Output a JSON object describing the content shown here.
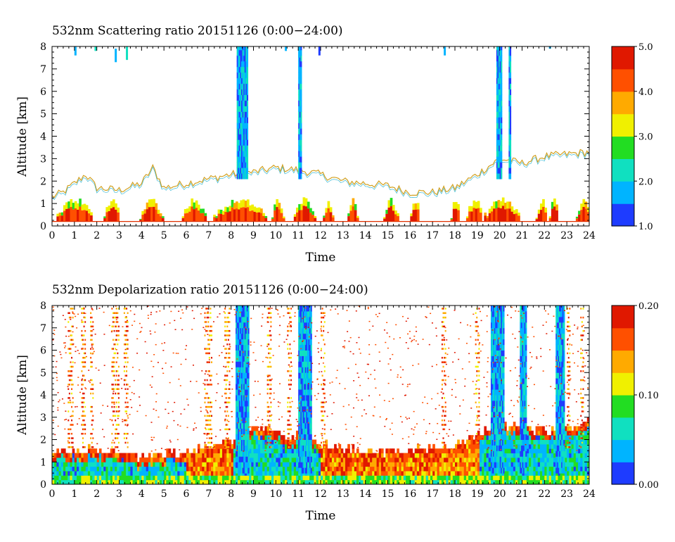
{
  "chart_data": [
    {
      "type": "heatmap",
      "title": "532nm Scattering ratio  20151126 (0:00−24:00)",
      "xlabel": "Time",
      "ylabel": "Altitude [km]",
      "xlim": [
        0,
        24
      ],
      "ylim": [
        0,
        8
      ],
      "x_ticks": [
        "0",
        "1",
        "2",
        "3",
        "4",
        "5",
        "6",
        "7",
        "8",
        "9",
        "10",
        "11",
        "12",
        "13",
        "14",
        "15",
        "16",
        "17",
        "18",
        "19",
        "20",
        "21",
        "22",
        "23",
        "24"
      ],
      "y_ticks": [
        "0",
        "1",
        "2",
        "3",
        "4",
        "5",
        "6",
        "7",
        "8"
      ],
      "colorbar": {
        "min": 1.0,
        "max": 5.0,
        "ticks": [
          "1.0",
          "2.0",
          "3.0",
          "4.0",
          "5.0"
        ],
        "colormap": "rainbow"
      },
      "colormap_colors": [
        "#1e3cff",
        "#00b4ff",
        "#10e0c0",
        "#22dd22",
        "#f0f000",
        "#ffaa00",
        "#ff5000",
        "#e01800"
      ],
      "features": {
        "cloud_top_km": [
          [
            0,
            1.3
          ],
          [
            0.5,
            1.5
          ],
          [
            1.5,
            2.3
          ],
          [
            2,
            1.7
          ],
          [
            3,
            1.6
          ],
          [
            4,
            1.9
          ],
          [
            4.5,
            2.6
          ],
          [
            5,
            1.7
          ],
          [
            6,
            1.9
          ],
          [
            7,
            2.1
          ],
          [
            8,
            2.3
          ],
          [
            9,
            2.4
          ],
          [
            10,
            2.6
          ],
          [
            11,
            2.5
          ],
          [
            12,
            2.3
          ],
          [
            13,
            2.0
          ],
          [
            14,
            1.9
          ],
          [
            15,
            1.8
          ],
          [
            16,
            1.5
          ],
          [
            17,
            1.5
          ],
          [
            18,
            1.7
          ],
          [
            19,
            2.3
          ],
          [
            20,
            3.0
          ],
          [
            21,
            2.8
          ],
          [
            22,
            3.1
          ],
          [
            23,
            3.2
          ],
          [
            24,
            3.3
          ]
        ],
        "low_layer_segments_h": [
          [
            0.2,
            1.8
          ],
          [
            2.3,
            3.0
          ],
          [
            3.9,
            4.9
          ],
          [
            5.8,
            6.8
          ],
          [
            7.2,
            9.5
          ],
          [
            9.8,
            10.3
          ],
          [
            10.8,
            11.7
          ],
          [
            12.1,
            12.5
          ],
          [
            13.2,
            13.6
          ],
          [
            14.8,
            15.4
          ],
          [
            16.0,
            16.4
          ],
          [
            17.8,
            18.2
          ],
          [
            18.5,
            19.2
          ],
          [
            19.3,
            20.9
          ],
          [
            21.6,
            22.1
          ],
          [
            22.2,
            22.6
          ],
          [
            23.4,
            24.0
          ]
        ],
        "high_cloud_columns_h": [
          [
            8.25,
            8.75
          ],
          [
            11.0,
            11.15
          ],
          [
            19.85,
            20.1
          ],
          [
            20.4,
            20.5
          ]
        ]
      }
    },
    {
      "type": "heatmap",
      "title": "532nm Depolarization ratio  20151126 (0:00−24:00)",
      "xlabel": "Time",
      "ylabel": "Altitude [km]",
      "xlim": [
        0,
        24
      ],
      "ylim": [
        0,
        8
      ],
      "x_ticks": [
        "0",
        "1",
        "2",
        "3",
        "4",
        "5",
        "6",
        "7",
        "8",
        "9",
        "10",
        "11",
        "12",
        "13",
        "14",
        "15",
        "16",
        "17",
        "18",
        "19",
        "20",
        "21",
        "22",
        "23",
        "24"
      ],
      "y_ticks": [
        "0",
        "1",
        "2",
        "3",
        "4",
        "5",
        "6",
        "7",
        "8"
      ],
      "colorbar": {
        "min": 0.0,
        "max": 0.2,
        "ticks": [
          "0.00",
          "0.10",
          "0.20"
        ],
        "colormap": "rainbow"
      },
      "colormap_colors": [
        "#1e3cff",
        "#00b4ff",
        "#10e0c0",
        "#22dd22",
        "#f0f000",
        "#ffaa00",
        "#ff5000",
        "#e01800"
      ],
      "features": {
        "boundary_layer_top_km": [
          [
            0,
            1.4
          ],
          [
            2,
            1.5
          ],
          [
            4,
            1.1
          ],
          [
            6,
            1.4
          ],
          [
            8,
            1.8
          ],
          [
            9,
            2.5
          ],
          [
            10,
            2.2
          ],
          [
            11,
            2.0
          ],
          [
            12,
            1.7
          ],
          [
            14,
            1.3
          ],
          [
            16,
            1.4
          ],
          [
            18,
            1.6
          ],
          [
            19,
            2.2
          ],
          [
            20,
            2.6
          ],
          [
            21,
            2.4
          ],
          [
            22,
            2.3
          ],
          [
            23,
            2.5
          ],
          [
            24,
            2.8
          ]
        ],
        "blue_columns_h": [
          [
            8.2,
            8.8
          ],
          [
            11.0,
            11.6
          ],
          [
            19.6,
            20.2
          ],
          [
            20.9,
            21.2
          ],
          [
            22.5,
            22.9
          ]
        ],
        "streak_columns_h": [
          [
            0.7,
            0.95
          ],
          [
            1.3,
            1.5
          ],
          [
            1.7,
            1.85
          ],
          [
            2.65,
            2.95
          ],
          [
            3.2,
            3.35
          ],
          [
            6.8,
            7.1
          ],
          [
            7.7,
            7.9
          ],
          [
            9.6,
            9.8
          ],
          [
            10.5,
            10.7
          ],
          [
            12.0,
            12.2
          ],
          [
            17.4,
            17.6
          ],
          [
            18.9,
            19.1
          ],
          [
            23.0,
            23.15
          ],
          [
            23.6,
            23.75
          ]
        ]
      }
    }
  ]
}
